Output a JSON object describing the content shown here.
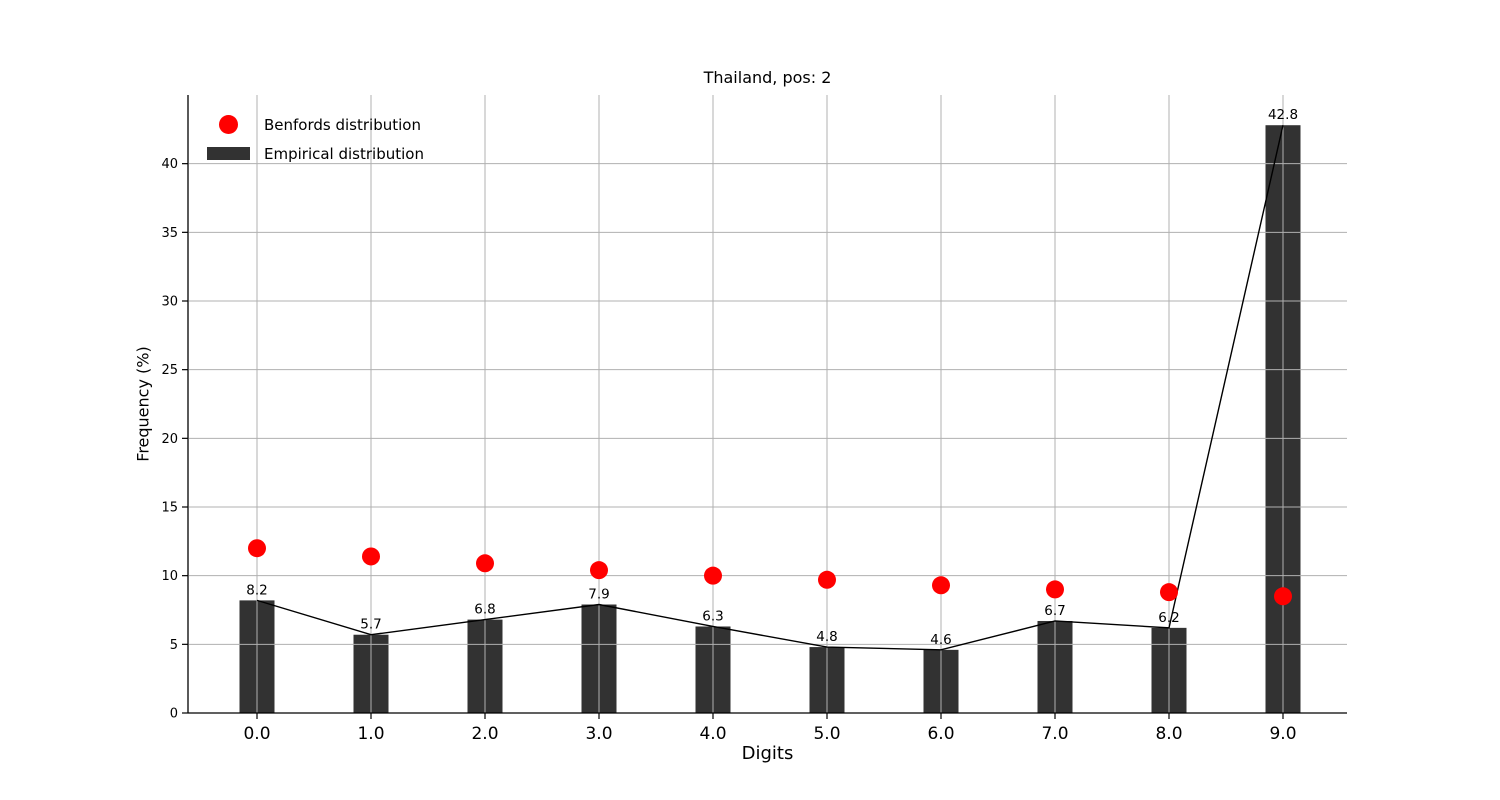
{
  "chart_data": {
    "type": "bar",
    "title": "Thailand, pos: 2",
    "xlabel": "Digits",
    "ylabel": "Frequency (%)",
    "categories": [
      "0.0",
      "1.0",
      "2.0",
      "3.0",
      "4.0",
      "5.0",
      "6.0",
      "7.0",
      "8.0",
      "9.0"
    ],
    "series": [
      {
        "name": "Benfords distribution",
        "type": "scatter",
        "color": "#ff0000",
        "values": [
          12.0,
          11.4,
          10.9,
          10.4,
          10.0,
          9.7,
          9.3,
          9.0,
          8.8,
          8.5
        ]
      },
      {
        "name": "Empirical distribution",
        "type": "bar",
        "color": "#323232",
        "values": [
          8.2,
          5.7,
          6.8,
          7.9,
          6.3,
          4.8,
          4.6,
          6.7,
          6.2,
          42.8
        ],
        "bar_labels": [
          "8.2",
          "5.7",
          "6.8",
          "7.9",
          "6.3",
          "4.8",
          "4.6",
          "6.7",
          "6.2",
          "42.8"
        ],
        "connected_line": true,
        "line_color": "#000000"
      }
    ],
    "ylim": [
      0,
      45
    ],
    "yticks": [
      0,
      5,
      10,
      15,
      20,
      25,
      30,
      35,
      40
    ],
    "grid": true,
    "grid_color": "#b0b0b0",
    "axis_color": "#000000",
    "legend_position": "upper left"
  }
}
